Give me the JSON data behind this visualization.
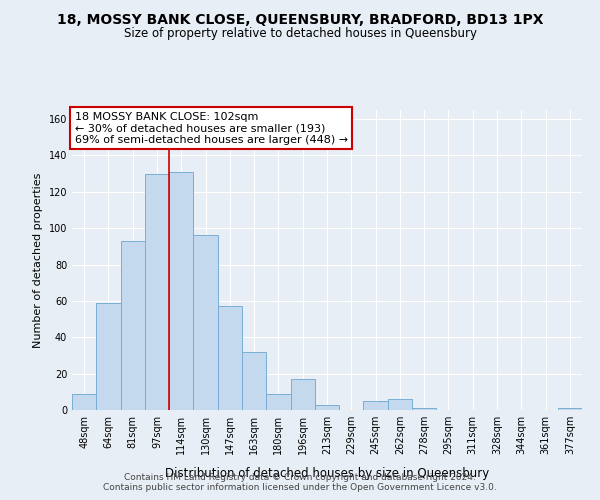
{
  "title": "18, MOSSY BANK CLOSE, QUEENSBURY, BRADFORD, BD13 1PX",
  "subtitle": "Size of property relative to detached houses in Queensbury",
  "xlabel": "Distribution of detached houses by size in Queensbury",
  "ylabel": "Number of detached properties",
  "bar_labels": [
    "48sqm",
    "64sqm",
    "81sqm",
    "97sqm",
    "114sqm",
    "130sqm",
    "147sqm",
    "163sqm",
    "180sqm",
    "196sqm",
    "213sqm",
    "229sqm",
    "245sqm",
    "262sqm",
    "278sqm",
    "295sqm",
    "311sqm",
    "328sqm",
    "344sqm",
    "361sqm",
    "377sqm"
  ],
  "bar_values": [
    9,
    59,
    93,
    130,
    131,
    96,
    57,
    32,
    9,
    17,
    3,
    0,
    5,
    6,
    1,
    0,
    0,
    0,
    0,
    0,
    1
  ],
  "bar_color": "#c5d9ee",
  "bar_edge_color": "#7aaed4",
  "vline_color": "#cc0000",
  "vline_x_index": 3.5,
  "ylim": [
    0,
    165
  ],
  "yticks": [
    0,
    20,
    40,
    60,
    80,
    100,
    120,
    140,
    160
  ],
  "annotation_line1": "18 MOSSY BANK CLOSE: 102sqm",
  "annotation_line2": "← 30% of detached houses are smaller (193)",
  "annotation_line3": "69% of semi-detached houses are larger (448) →",
  "annotation_box_color": "#ffffff",
  "annotation_box_edge": "#cc0000",
  "footer_line1": "Contains HM Land Registry data © Crown copyright and database right 2024.",
  "footer_line2": "Contains public sector information licensed under the Open Government Licence v3.0.",
  "bg_color": "#e8eef5",
  "plot_bg_color": "#e8eef5",
  "grid_color": "#ffffff"
}
